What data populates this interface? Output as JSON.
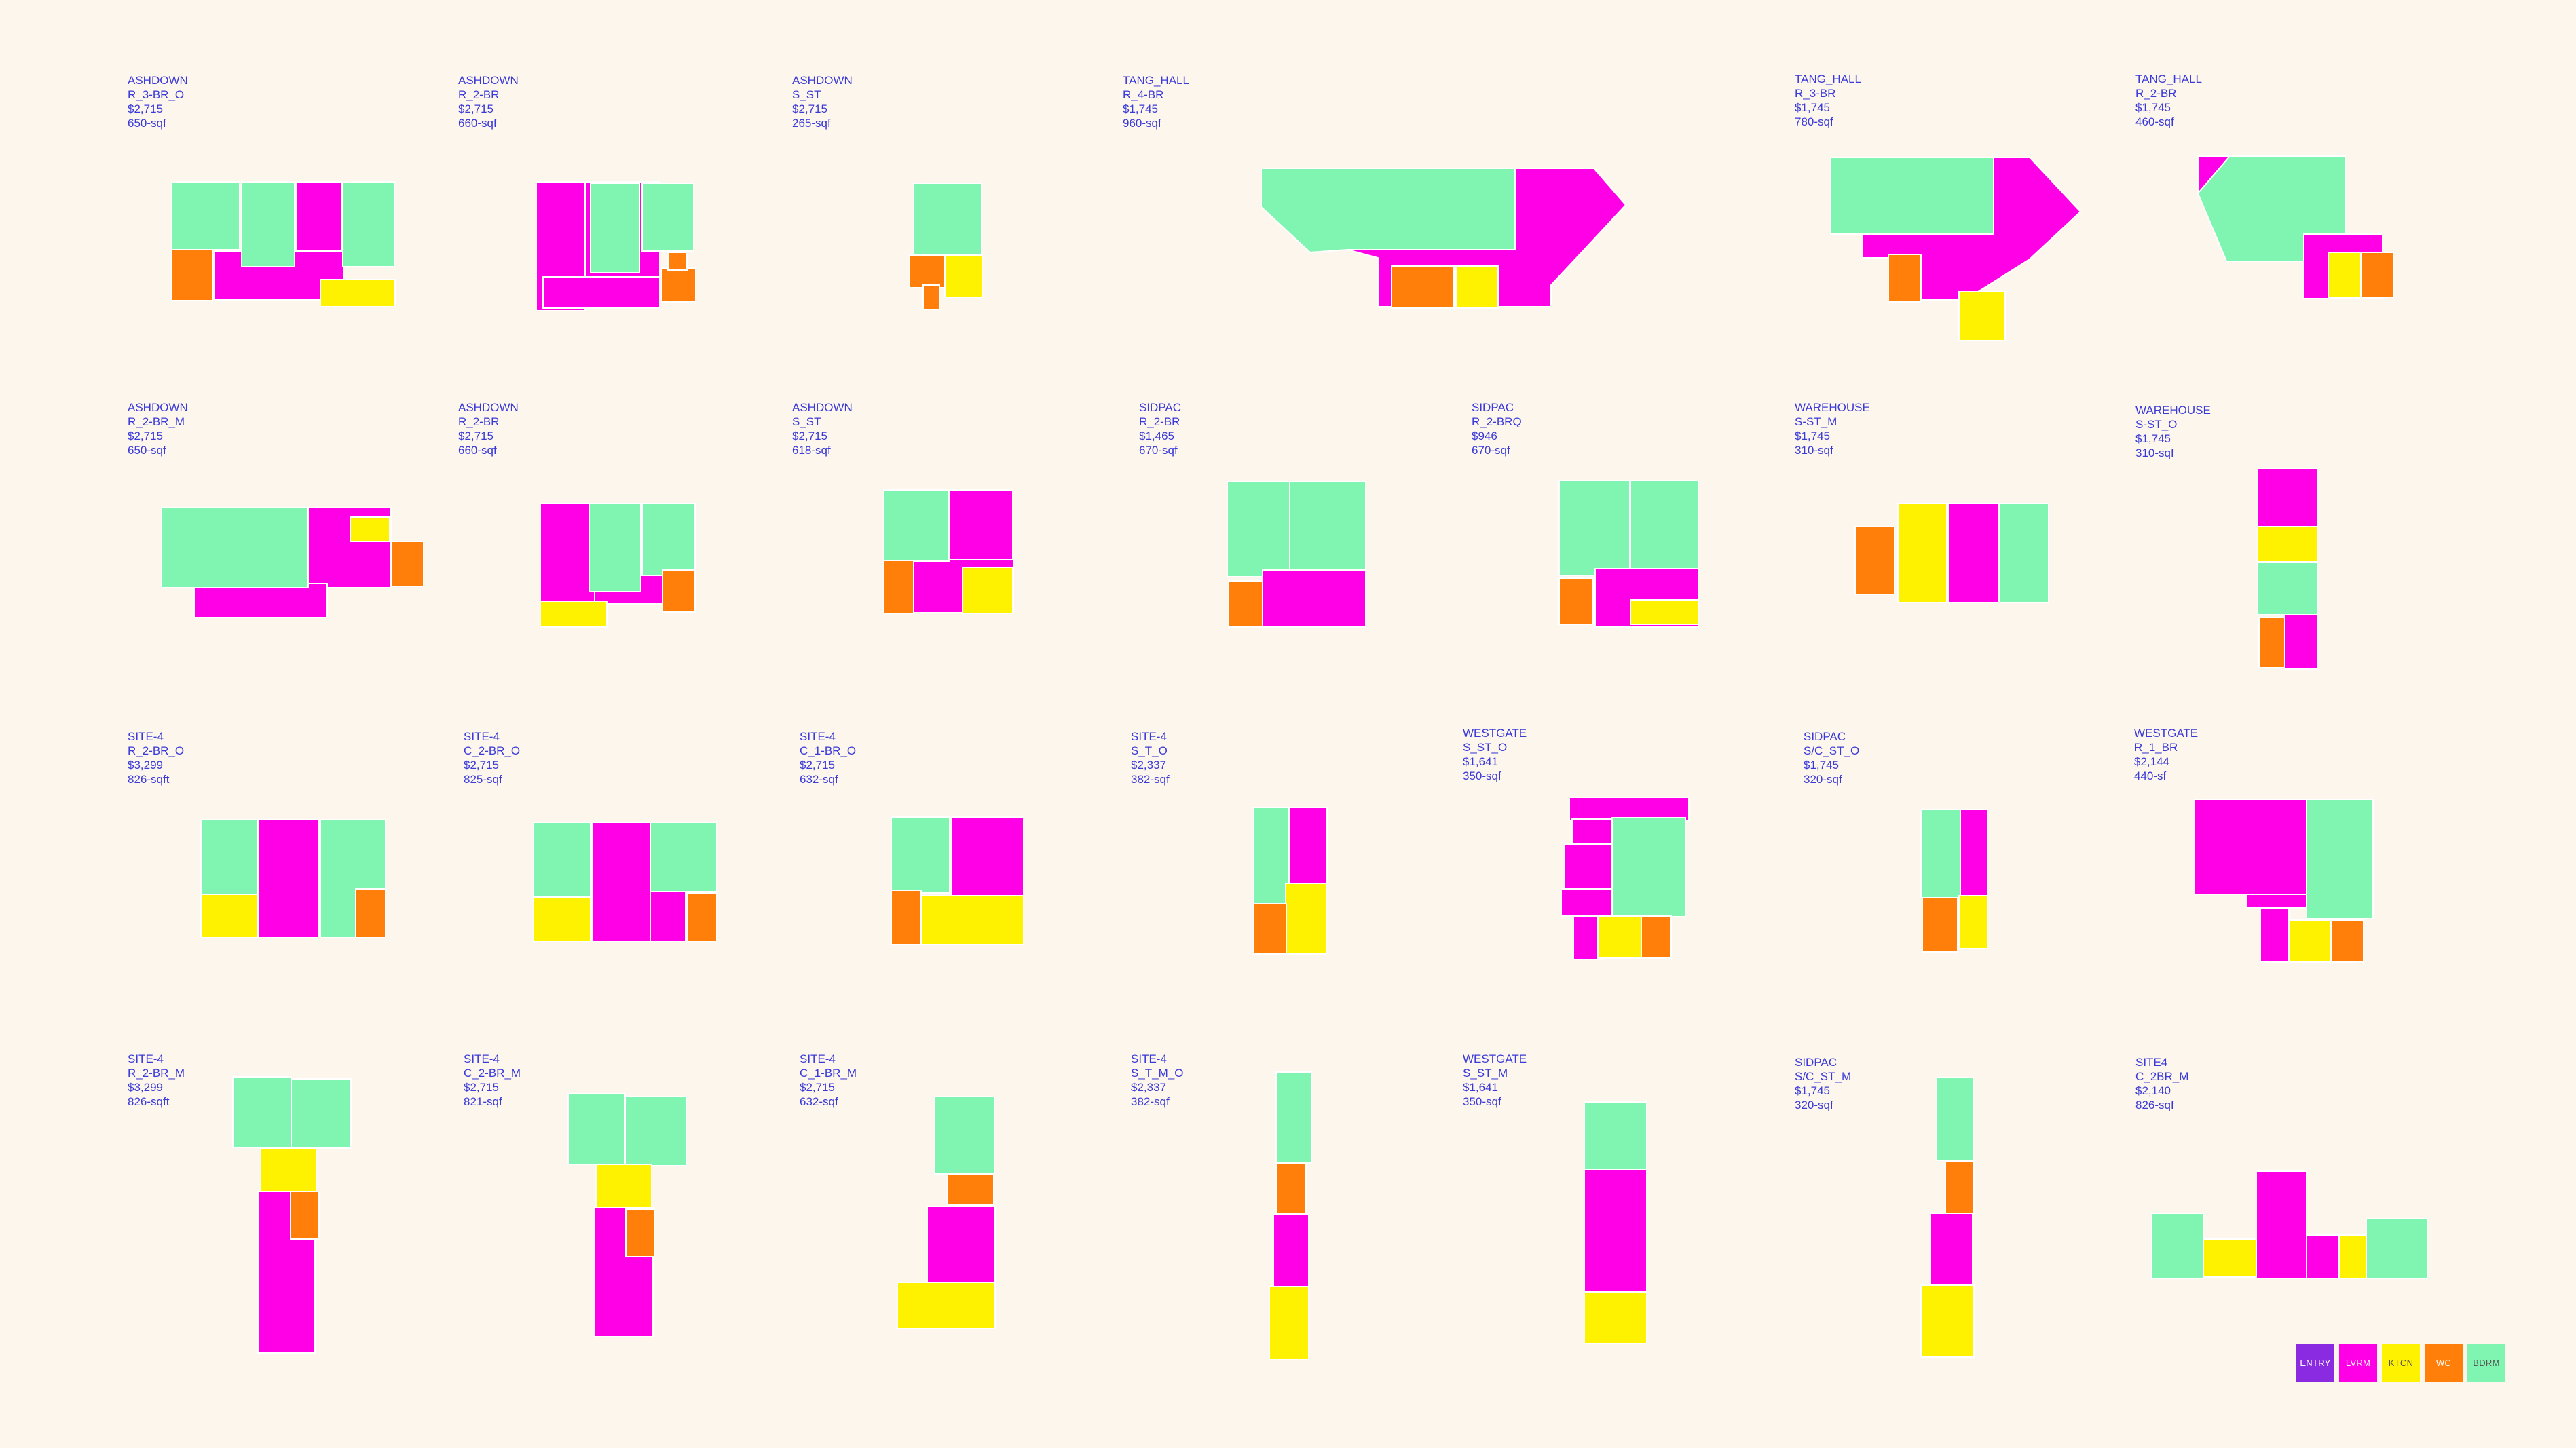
{
  "colors": {
    "entry": "#8a2be2",
    "lvrm": "#ff00e6",
    "ktcn": "#fff200",
    "wc": "#ff7f0a",
    "bdrm": "#80f5b2",
    "label_text": "#3a3ad8",
    "background": "#fdf6ec"
  },
  "legend": [
    {
      "key": "entry",
      "label": "ENTRY"
    },
    {
      "key": "lvrm",
      "label": "LVRM"
    },
    {
      "key": "ktcn",
      "label": "KTCN"
    },
    {
      "key": "wc",
      "label": "WC"
    },
    {
      "key": "bdrm",
      "label": "BDRM"
    }
  ],
  "units": [
    {
      "building": "ASHDOWN",
      "type": "R_3-BR_O",
      "price": "$2,715",
      "area": "650-sqf"
    },
    {
      "building": "ASHDOWN",
      "type": "R_2-BR",
      "price": "$2,715",
      "area": "660-sqf"
    },
    {
      "building": "ASHDOWN",
      "type": "S_ST",
      "price": "$2,715",
      "area": "265-sqf"
    },
    {
      "building": "TANG_HALL",
      "type": "R_4-BR",
      "price": "$1,745",
      "area": "960-sqf"
    },
    {
      "building": "TANG_HALL",
      "type": "R_3-BR",
      "price": "$1,745",
      "area": "780-sqf"
    },
    {
      "building": "TANG_HALL",
      "type": "R_2-BR",
      "price": "$1,745",
      "area": "460-sqf"
    },
    {
      "building": "ASHDOWN",
      "type": "R_2-BR_M",
      "price": "$2,715",
      "area": "650-sqf"
    },
    {
      "building": "ASHDOWN",
      "type": "R_2-BR",
      "price": "$2,715",
      "area": "660-sqf"
    },
    {
      "building": "ASHDOWN",
      "type": "S_ST",
      "price": "$2,715",
      "area": "618-sqf"
    },
    {
      "building": "SIDPAC",
      "type": "R_2-BR",
      "price": "$1,465",
      "area": "670-sqf"
    },
    {
      "building": "SIDPAC",
      "type": "R_2-BRQ",
      "price": "$946",
      "area": "670-sqf"
    },
    {
      "building": "WAREHOUSE",
      "type": "S-ST_M",
      "price": "$1,745",
      "area": "310-sqf"
    },
    {
      "building": "WAREHOUSE",
      "type": "S-ST_O",
      "price": "$1,745",
      "area": "310-sqf"
    },
    {
      "building": "SITE-4",
      "type": "R_2-BR_O",
      "price": "$3,299",
      "area": "826-sqft"
    },
    {
      "building": "SITE-4",
      "type": "C_2-BR_O",
      "price": "$2,715",
      "area": "825-sqf"
    },
    {
      "building": "SITE-4",
      "type": "C_1-BR_O",
      "price": "$2,715",
      "area": "632-sqf"
    },
    {
      "building": "SITE-4",
      "type": "S_T_O",
      "price": "$2,337",
      "area": "382-sqf"
    },
    {
      "building": "WESTGATE",
      "type": "S_ST_O",
      "price": "$1,641",
      "area": "350-sqf"
    },
    {
      "building": "SIDPAC",
      "type": "S/C_ST_O",
      "price": "$1,745",
      "area": "320-sqf"
    },
    {
      "building": "WESTGATE",
      "type": "R_1_BR",
      "price": "$2,144",
      "area": "440-sf"
    },
    {
      "building": "SITE-4",
      "type": "R_2-BR_M",
      "price": "$3,299",
      "area": "826-sqft"
    },
    {
      "building": "SITE-4",
      "type": "C_2-BR_M",
      "price": "$2,715",
      "area": "821-sqf"
    },
    {
      "building": "SITE-4",
      "type": "C_1-BR_M",
      "price": "$2,715",
      "area": "632-sqf"
    },
    {
      "building": "SITE-4",
      "type": "S_T_M_O",
      "price": "$2,337",
      "area": "382-sqf"
    },
    {
      "building": "WESTGATE",
      "type": "S_ST_M",
      "price": "$1,641",
      "area": "350-sqf"
    },
    {
      "building": "SIDPAC",
      "type": "S/C_ST_M",
      "price": "$1,745",
      "area": "320-sqf"
    },
    {
      "building": "SITE4",
      "type": "C_2BR_M",
      "price": "$2,140",
      "area": "826-sqf"
    }
  ]
}
